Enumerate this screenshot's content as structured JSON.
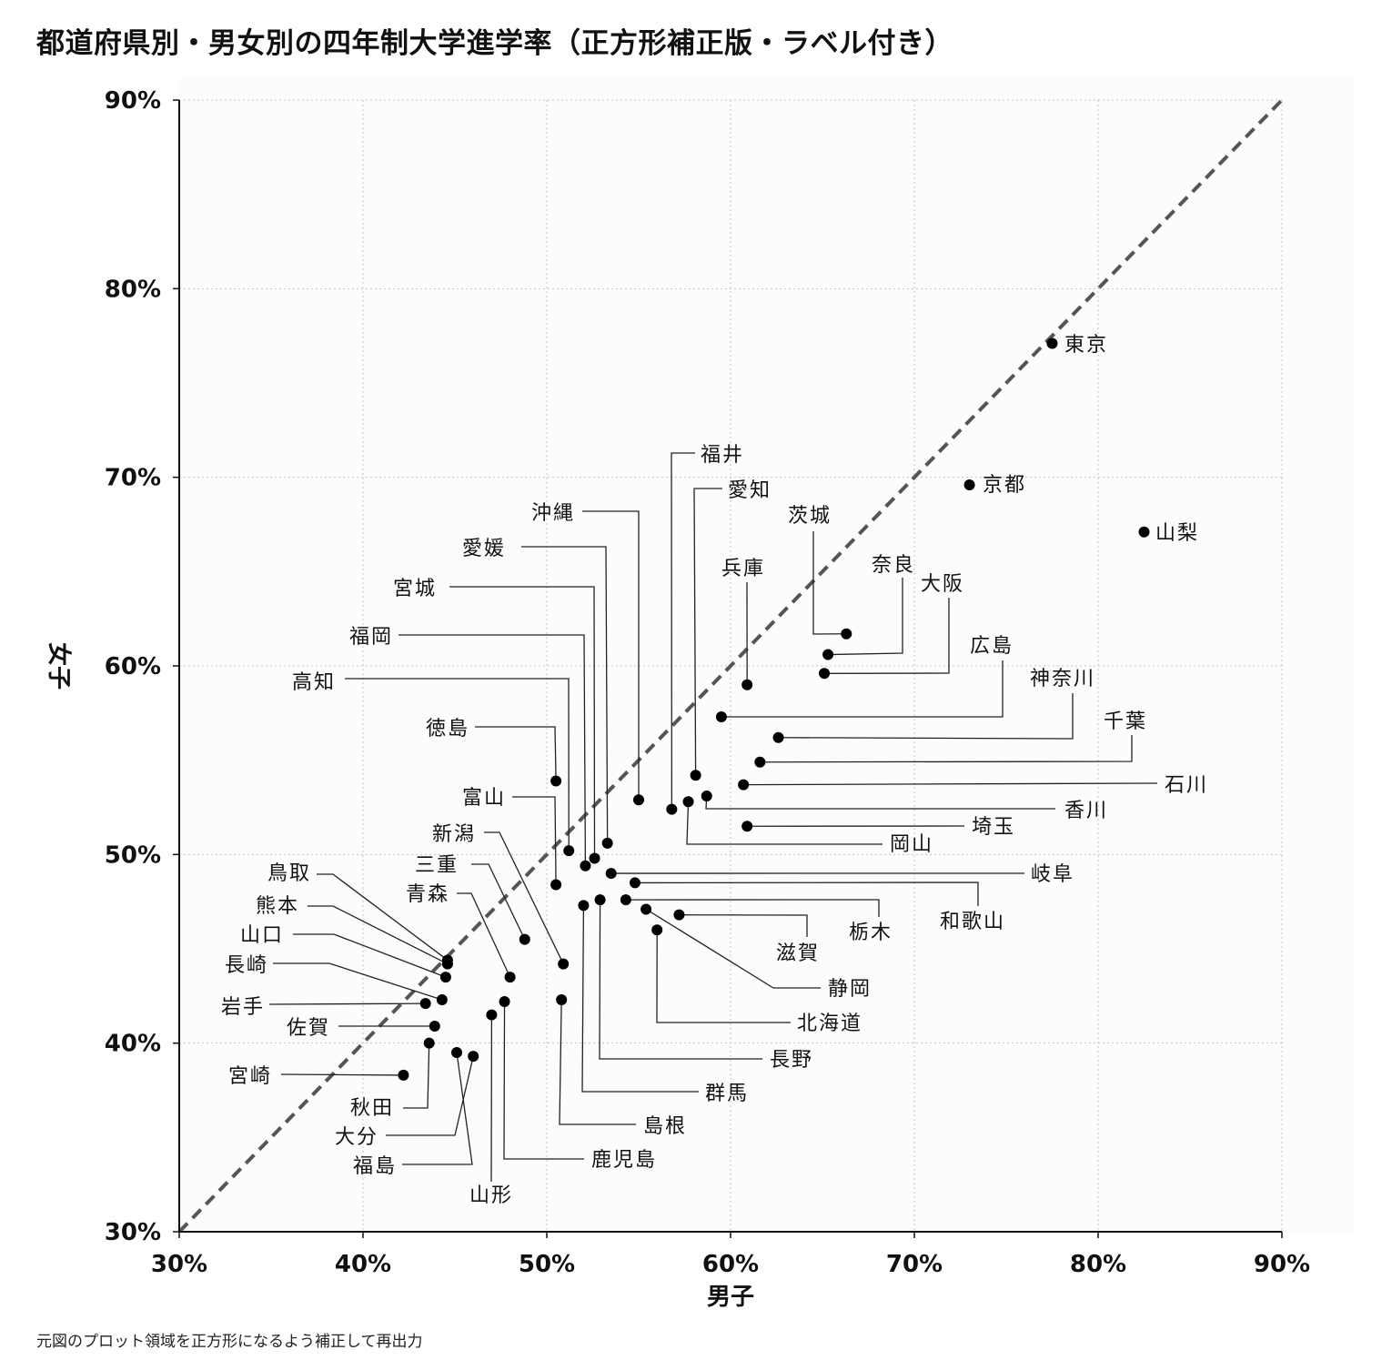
{
  "title": "都道府県別・男女別の四年制大学進学率（正方形補正版・ラベル付き）",
  "footnote": "元図のプロット領域を正方形になるよう補正して再出力",
  "chart_data": {
    "type": "scatter",
    "xlabel": "男子",
    "ylabel": "女子",
    "xlim": [
      30,
      90
    ],
    "ylim": [
      30,
      90
    ],
    "unit": "%",
    "xticks": [
      "30%",
      "40%",
      "50%",
      "60%",
      "70%",
      "80%",
      "90%"
    ],
    "yticks": [
      "30%",
      "40%",
      "50%",
      "60%",
      "70%",
      "80%",
      "90%"
    ],
    "grid": true,
    "reference_line": "y = x (dashed)",
    "points": [
      {
        "name": "東京",
        "x": 77.5,
        "y": 77.1
      },
      {
        "name": "京都",
        "x": 73.0,
        "y": 69.6
      },
      {
        "name": "山梨",
        "x": 82.5,
        "y": 67.1
      },
      {
        "name": "茨城",
        "x": 66.3,
        "y": 61.7
      },
      {
        "name": "奈良",
        "x": 65.3,
        "y": 60.6
      },
      {
        "name": "大阪",
        "x": 65.1,
        "y": 59.6
      },
      {
        "name": "兵庫",
        "x": 60.9,
        "y": 59.0
      },
      {
        "name": "広島",
        "x": 59.5,
        "y": 57.3
      },
      {
        "name": "神奈川",
        "x": 62.6,
        "y": 56.2
      },
      {
        "name": "千葉",
        "x": 61.6,
        "y": 54.9
      },
      {
        "name": "愛知",
        "x": 58.1,
        "y": 54.2
      },
      {
        "name": "徳島",
        "x": 50.5,
        "y": 53.9
      },
      {
        "name": "石川",
        "x": 60.7,
        "y": 53.7
      },
      {
        "name": "沖縄",
        "x": 55.0,
        "y": 52.9
      },
      {
        "name": "香川",
        "x": 58.7,
        "y": 53.1
      },
      {
        "name": "岡山",
        "x": 57.7,
        "y": 52.8
      },
      {
        "name": "福井",
        "x": 56.8,
        "y": 52.4
      },
      {
        "name": "埼玉",
        "x": 60.9,
        "y": 51.5
      },
      {
        "name": "愛媛",
        "x": 53.3,
        "y": 50.6
      },
      {
        "name": "高知",
        "x": 51.2,
        "y": 50.2
      },
      {
        "name": "宮城",
        "x": 52.6,
        "y": 49.8
      },
      {
        "name": "福岡",
        "x": 52.1,
        "y": 49.4
      },
      {
        "name": "岐阜",
        "x": 53.5,
        "y": 49.0
      },
      {
        "name": "和歌山",
        "x": 54.8,
        "y": 48.5
      },
      {
        "name": "富山",
        "x": 50.5,
        "y": 48.4
      },
      {
        "name": "長野",
        "x": 52.9,
        "y": 47.6
      },
      {
        "name": "栃木",
        "x": 54.3,
        "y": 47.6
      },
      {
        "name": "群馬",
        "x": 52.0,
        "y": 47.3
      },
      {
        "name": "静岡",
        "x": 55.4,
        "y": 47.1
      },
      {
        "name": "滋賀",
        "x": 57.2,
        "y": 46.8
      },
      {
        "name": "北海道",
        "x": 56.0,
        "y": 46.0
      },
      {
        "name": "三重",
        "x": 48.8,
        "y": 45.5
      },
      {
        "name": "鳥取",
        "x": 44.6,
        "y": 44.4
      },
      {
        "name": "新潟",
        "x": 50.9,
        "y": 44.2
      },
      {
        "name": "熊本",
        "x": 44.6,
        "y": 44.2
      },
      {
        "name": "山口",
        "x": 44.5,
        "y": 43.5
      },
      {
        "name": "青森",
        "x": 48.0,
        "y": 43.5
      },
      {
        "name": "長崎",
        "x": 44.3,
        "y": 42.3
      },
      {
        "name": "島根",
        "x": 50.8,
        "y": 42.3
      },
      {
        "name": "鹿児島",
        "x": 47.7,
        "y": 42.2
      },
      {
        "name": "岩手",
        "x": 43.4,
        "y": 42.1
      },
      {
        "name": "山形",
        "x": 47.0,
        "y": 41.5
      },
      {
        "name": "佐賀",
        "x": 43.9,
        "y": 40.9
      },
      {
        "name": "秋田",
        "x": 43.6,
        "y": 40.0
      },
      {
        "name": "福島",
        "x": 45.1,
        "y": 39.5
      },
      {
        "name": "大分",
        "x": 46.0,
        "y": 39.3
      },
      {
        "name": "宮崎",
        "x": 42.2,
        "y": 38.3
      }
    ]
  }
}
